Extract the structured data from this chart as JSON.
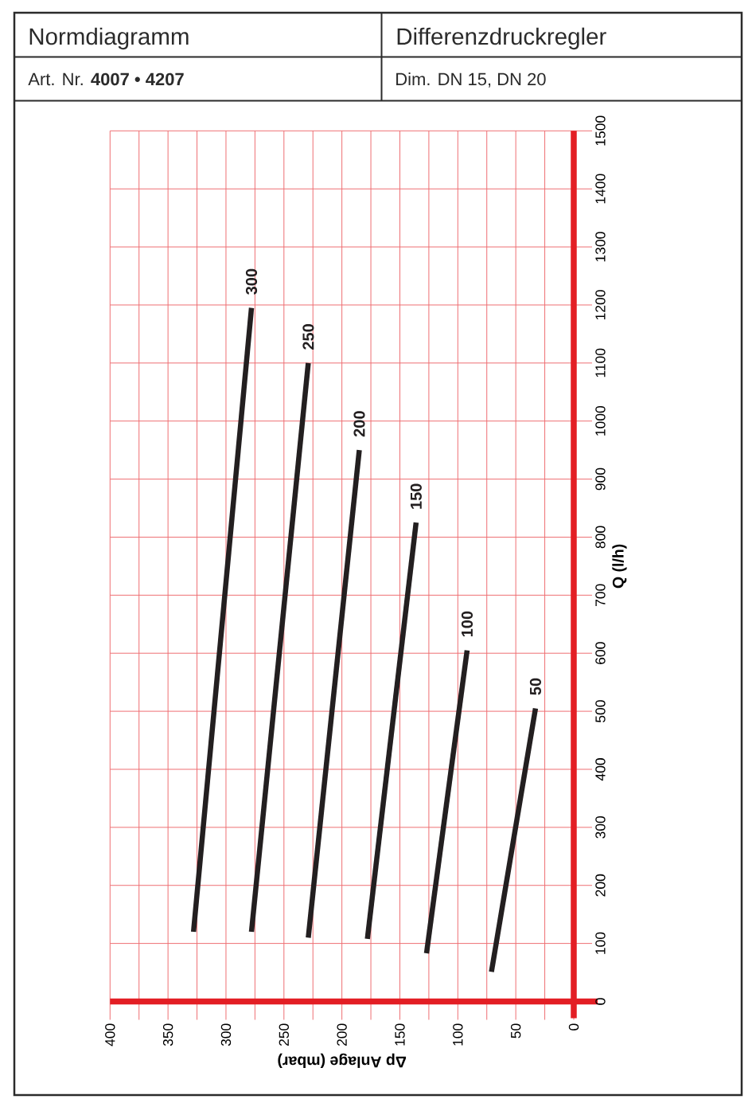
{
  "chart_data": {
    "type": "line",
    "title": "Normdiagramm",
    "subtitle": "Differenzdruckregler",
    "annotations": [
      "Art. Nr. **4007 • 4207**",
      "Dim. DN 15, DN 20"
    ],
    "xlabel": "Δp Anlage (mbar)",
    "ylabel": "Q (l/h)",
    "xlim": [
      400,
      0
    ],
    "xticks": [
      400,
      {
        "value": 375,
        "label": null
      },
      350,
      {
        "value": 325,
        "label": null
      },
      300,
      {
        "value": 275,
        "label": null
      },
      250,
      {
        "value": 225,
        "label": null
      },
      200,
      {
        "value": 175,
        "label": null
      },
      150,
      {
        "value": 125,
        "label": null
      },
      100,
      {
        "value": 75,
        "label": null
      },
      50,
      {
        "value": 25,
        "label": null
      },
      0
    ],
    "ylim": [
      0,
      1500
    ],
    "yticks": [
      0,
      100,
      200,
      300,
      400,
      500,
      600,
      700,
      800,
      900,
      1000,
      1100,
      1200,
      1300,
      1400,
      1500
    ],
    "grid": true,
    "line_style": "solid",
    "series": [
      {
        "name": "300",
        "color": "#231f20",
        "x": [
          328,
          278
        ],
        "values": [
          120,
          1195
        ]
      },
      {
        "name": "250",
        "color": "#231f20",
        "x": [
          278,
          229
        ],
        "values": [
          120,
          1100
        ]
      },
      {
        "name": "200",
        "color": "#231f20",
        "x": [
          229,
          185
        ],
        "values": [
          110,
          950
        ]
      },
      {
        "name": "150",
        "color": "#231f20",
        "x": [
          178,
          136
        ],
        "values": [
          108,
          825
        ]
      },
      {
        "name": "100",
        "color": "#231f20",
        "x": [
          127,
          92
        ],
        "values": [
          83,
          605
        ]
      },
      {
        "name": "50",
        "color": "#231f20",
        "x": [
          71,
          33
        ],
        "values": [
          51,
          505
        ]
      }
    ]
  }
}
